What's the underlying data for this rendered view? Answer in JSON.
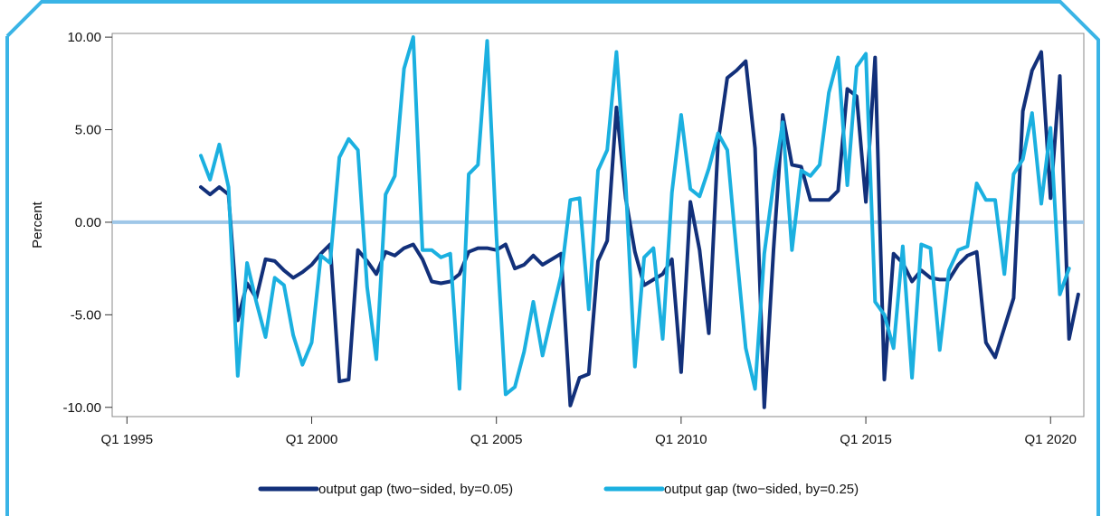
{
  "chart_data": {
    "type": "line",
    "title": "",
    "xlabel": "",
    "ylabel": "Percent",
    "xlim": [
      1994.6,
      2020.9
    ],
    "ylim": [
      -10.5,
      10.2
    ],
    "x_ticks": [
      {
        "value": 1995.0,
        "label": "Q1 1995"
      },
      {
        "value": 2000.0,
        "label": "Q1 2000"
      },
      {
        "value": 2005.0,
        "label": "Q1 2005"
      },
      {
        "value": 2010.0,
        "label": "Q1 2010"
      },
      {
        "value": 2015.0,
        "label": "Q1 2015"
      },
      {
        "value": 2020.0,
        "label": "Q1 2020"
      }
    ],
    "y_ticks": [
      {
        "value": 10,
        "label": "10.00"
      },
      {
        "value": 5,
        "label": "5.00"
      },
      {
        "value": 0,
        "label": "0.00"
      },
      {
        "value": -5,
        "label": "-5.00"
      },
      {
        "value": -10,
        "label": "-10.00"
      }
    ],
    "grid": false,
    "zero_line": true,
    "legend_position": "bottom",
    "colors": {
      "frame": "#3ab4e6",
      "zero_line": "#9fc7e8",
      "axis": "#333333"
    },
    "series": [
      {
        "name": "output gap (two−sided, by=0.05)",
        "color": "#12307a",
        "points": [
          [
            1997.0,
            1.9
          ],
          [
            1997.25,
            1.5
          ],
          [
            1997.5,
            1.9
          ],
          [
            1997.75,
            1.5
          ],
          [
            1998.0,
            -5.3
          ],
          [
            1998.25,
            -3.3
          ],
          [
            1998.5,
            -4.1
          ],
          [
            1998.75,
            -2.0
          ],
          [
            1999.0,
            -2.1
          ],
          [
            1999.25,
            -2.6
          ],
          [
            1999.5,
            -3.0
          ],
          [
            1999.75,
            -2.7
          ],
          [
            2000.0,
            -2.3
          ],
          [
            2000.25,
            -1.7
          ],
          [
            2000.5,
            -1.2
          ],
          [
            2000.75,
            -8.6
          ],
          [
            2001.0,
            -8.5
          ],
          [
            2001.25,
            -1.5
          ],
          [
            2001.5,
            -2.1
          ],
          [
            2001.75,
            -2.8
          ],
          [
            2002.0,
            -1.6
          ],
          [
            2002.25,
            -1.8
          ],
          [
            2002.5,
            -1.4
          ],
          [
            2002.75,
            -1.2
          ],
          [
            2003.0,
            -2.0
          ],
          [
            2003.25,
            -3.2
          ],
          [
            2003.5,
            -3.3
          ],
          [
            2003.75,
            -3.2
          ],
          [
            2004.0,
            -2.8
          ],
          [
            2004.25,
            -1.6
          ],
          [
            2004.5,
            -1.4
          ],
          [
            2004.75,
            -1.4
          ],
          [
            2005.0,
            -1.5
          ],
          [
            2005.25,
            -1.2
          ],
          [
            2005.5,
            -2.5
          ],
          [
            2005.75,
            -2.3
          ],
          [
            2006.0,
            -1.8
          ],
          [
            2006.25,
            -2.3
          ],
          [
            2006.5,
            -2.0
          ],
          [
            2006.75,
            -1.7
          ],
          [
            2007.0,
            -9.9
          ],
          [
            2007.25,
            -8.4
          ],
          [
            2007.5,
            -8.2
          ],
          [
            2007.75,
            -2.1
          ],
          [
            2008.0,
            -1.0
          ],
          [
            2008.25,
            6.2
          ],
          [
            2008.5,
            1.3
          ],
          [
            2008.75,
            -1.6
          ],
          [
            2009.0,
            -3.4
          ],
          [
            2009.25,
            -3.1
          ],
          [
            2009.5,
            -2.8
          ],
          [
            2009.75,
            -2.0
          ],
          [
            2010.0,
            -8.1
          ],
          [
            2010.25,
            1.1
          ],
          [
            2010.5,
            -1.5
          ],
          [
            2010.75,
            -6.0
          ],
          [
            2011.0,
            4.3
          ],
          [
            2011.25,
            7.8
          ],
          [
            2011.5,
            8.2
          ],
          [
            2011.75,
            8.7
          ],
          [
            2012.0,
            4.0
          ],
          [
            2012.25,
            -10.0
          ],
          [
            2012.5,
            -1.5
          ],
          [
            2012.75,
            5.8
          ],
          [
            2013.0,
            3.1
          ],
          [
            2013.25,
            3.0
          ],
          [
            2013.5,
            1.2
          ],
          [
            2013.75,
            1.2
          ],
          [
            2014.0,
            1.2
          ],
          [
            2014.25,
            1.7
          ],
          [
            2014.5,
            7.2
          ],
          [
            2014.75,
            6.8
          ],
          [
            2015.0,
            1.1
          ],
          [
            2015.25,
            8.9
          ],
          [
            2015.5,
            -8.5
          ],
          [
            2015.75,
            -1.7
          ],
          [
            2016.0,
            -2.2
          ],
          [
            2016.25,
            -3.2
          ],
          [
            2016.5,
            -2.6
          ],
          [
            2016.75,
            -3.0
          ],
          [
            2017.0,
            -3.1
          ],
          [
            2017.25,
            -3.1
          ],
          [
            2017.5,
            -2.3
          ],
          [
            2017.75,
            -1.8
          ],
          [
            2018.0,
            -1.6
          ],
          [
            2018.25,
            -6.5
          ],
          [
            2018.5,
            -7.3
          ],
          [
            2018.75,
            -5.7
          ],
          [
            2019.0,
            -4.1
          ],
          [
            2019.25,
            6.0
          ],
          [
            2019.5,
            8.2
          ],
          [
            2019.75,
            9.2
          ],
          [
            2020.0,
            1.3
          ],
          [
            2020.25,
            7.9
          ],
          [
            2020.5,
            -6.3
          ],
          [
            2020.75,
            -3.9
          ]
        ]
      },
      {
        "name": "output gap (two−sided, by=0.25)",
        "color": "#1bb0e0",
        "points": [
          [
            1997.0,
            3.6
          ],
          [
            1997.25,
            2.3
          ],
          [
            1997.5,
            4.2
          ],
          [
            1997.75,
            1.9
          ],
          [
            1998.0,
            -8.3
          ],
          [
            1998.25,
            -2.2
          ],
          [
            1998.5,
            -4.3
          ],
          [
            1998.75,
            -6.2
          ],
          [
            1999.0,
            -3.0
          ],
          [
            1999.25,
            -3.4
          ],
          [
            1999.5,
            -6.1
          ],
          [
            1999.75,
            -7.7
          ],
          [
            2000.0,
            -6.5
          ],
          [
            2000.25,
            -1.8
          ],
          [
            2000.5,
            -2.2
          ],
          [
            2000.75,
            3.5
          ],
          [
            2001.0,
            4.5
          ],
          [
            2001.25,
            3.9
          ],
          [
            2001.5,
            -3.5
          ],
          [
            2001.75,
            -7.4
          ],
          [
            2002.0,
            1.5
          ],
          [
            2002.25,
            2.5
          ],
          [
            2002.5,
            8.3
          ],
          [
            2002.75,
            10.0
          ],
          [
            2003.0,
            -1.5
          ],
          [
            2003.25,
            -1.5
          ],
          [
            2003.5,
            -1.9
          ],
          [
            2003.75,
            -1.7
          ],
          [
            2004.0,
            -9.0
          ],
          [
            2004.25,
            2.6
          ],
          [
            2004.5,
            3.1
          ],
          [
            2004.75,
            9.8
          ],
          [
            2005.0,
            -0.7
          ],
          [
            2005.25,
            -9.3
          ],
          [
            2005.5,
            -8.9
          ],
          [
            2005.75,
            -7.0
          ],
          [
            2006.0,
            -4.3
          ],
          [
            2006.25,
            -7.2
          ],
          [
            2006.5,
            -5.0
          ],
          [
            2006.75,
            -2.9
          ],
          [
            2007.0,
            1.2
          ],
          [
            2007.25,
            1.3
          ],
          [
            2007.5,
            -4.7
          ],
          [
            2007.75,
            2.8
          ],
          [
            2008.0,
            3.9
          ],
          [
            2008.25,
            9.2
          ],
          [
            2008.5,
            2.1
          ],
          [
            2008.75,
            -7.8
          ],
          [
            2009.0,
            -1.9
          ],
          [
            2009.25,
            -1.4
          ],
          [
            2009.5,
            -6.3
          ],
          [
            2009.75,
            1.6
          ],
          [
            2010.0,
            5.8
          ],
          [
            2010.25,
            1.8
          ],
          [
            2010.5,
            1.4
          ],
          [
            2010.75,
            2.9
          ],
          [
            2011.0,
            4.8
          ],
          [
            2011.25,
            3.9
          ],
          [
            2011.5,
            -1.6
          ],
          [
            2011.75,
            -6.8
          ],
          [
            2012.0,
            -9.0
          ],
          [
            2012.25,
            -1.7
          ],
          [
            2012.5,
            2.1
          ],
          [
            2012.75,
            5.4
          ],
          [
            2013.0,
            -1.5
          ],
          [
            2013.25,
            2.8
          ],
          [
            2013.5,
            2.5
          ],
          [
            2013.75,
            3.1
          ],
          [
            2014.0,
            7.0
          ],
          [
            2014.25,
            8.9
          ],
          [
            2014.5,
            2.0
          ],
          [
            2014.75,
            8.4
          ],
          [
            2015.0,
            9.1
          ],
          [
            2015.25,
            -4.3
          ],
          [
            2015.5,
            -5.0
          ],
          [
            2015.75,
            -6.8
          ],
          [
            2016.0,
            -1.3
          ],
          [
            2016.25,
            -8.4
          ],
          [
            2016.5,
            -1.2
          ],
          [
            2016.75,
            -1.4
          ],
          [
            2017.0,
            -6.9
          ],
          [
            2017.25,
            -2.6
          ],
          [
            2017.5,
            -1.5
          ],
          [
            2017.75,
            -1.3
          ],
          [
            2018.0,
            2.1
          ],
          [
            2018.25,
            1.2
          ],
          [
            2018.5,
            1.2
          ],
          [
            2018.75,
            -2.8
          ],
          [
            2019.0,
            2.6
          ],
          [
            2019.25,
            3.4
          ],
          [
            2019.5,
            5.9
          ],
          [
            2019.75,
            1.0
          ],
          [
            2020.0,
            5.1
          ],
          [
            2020.25,
            -3.9
          ],
          [
            2020.5,
            -2.5
          ]
        ]
      }
    ]
  }
}
